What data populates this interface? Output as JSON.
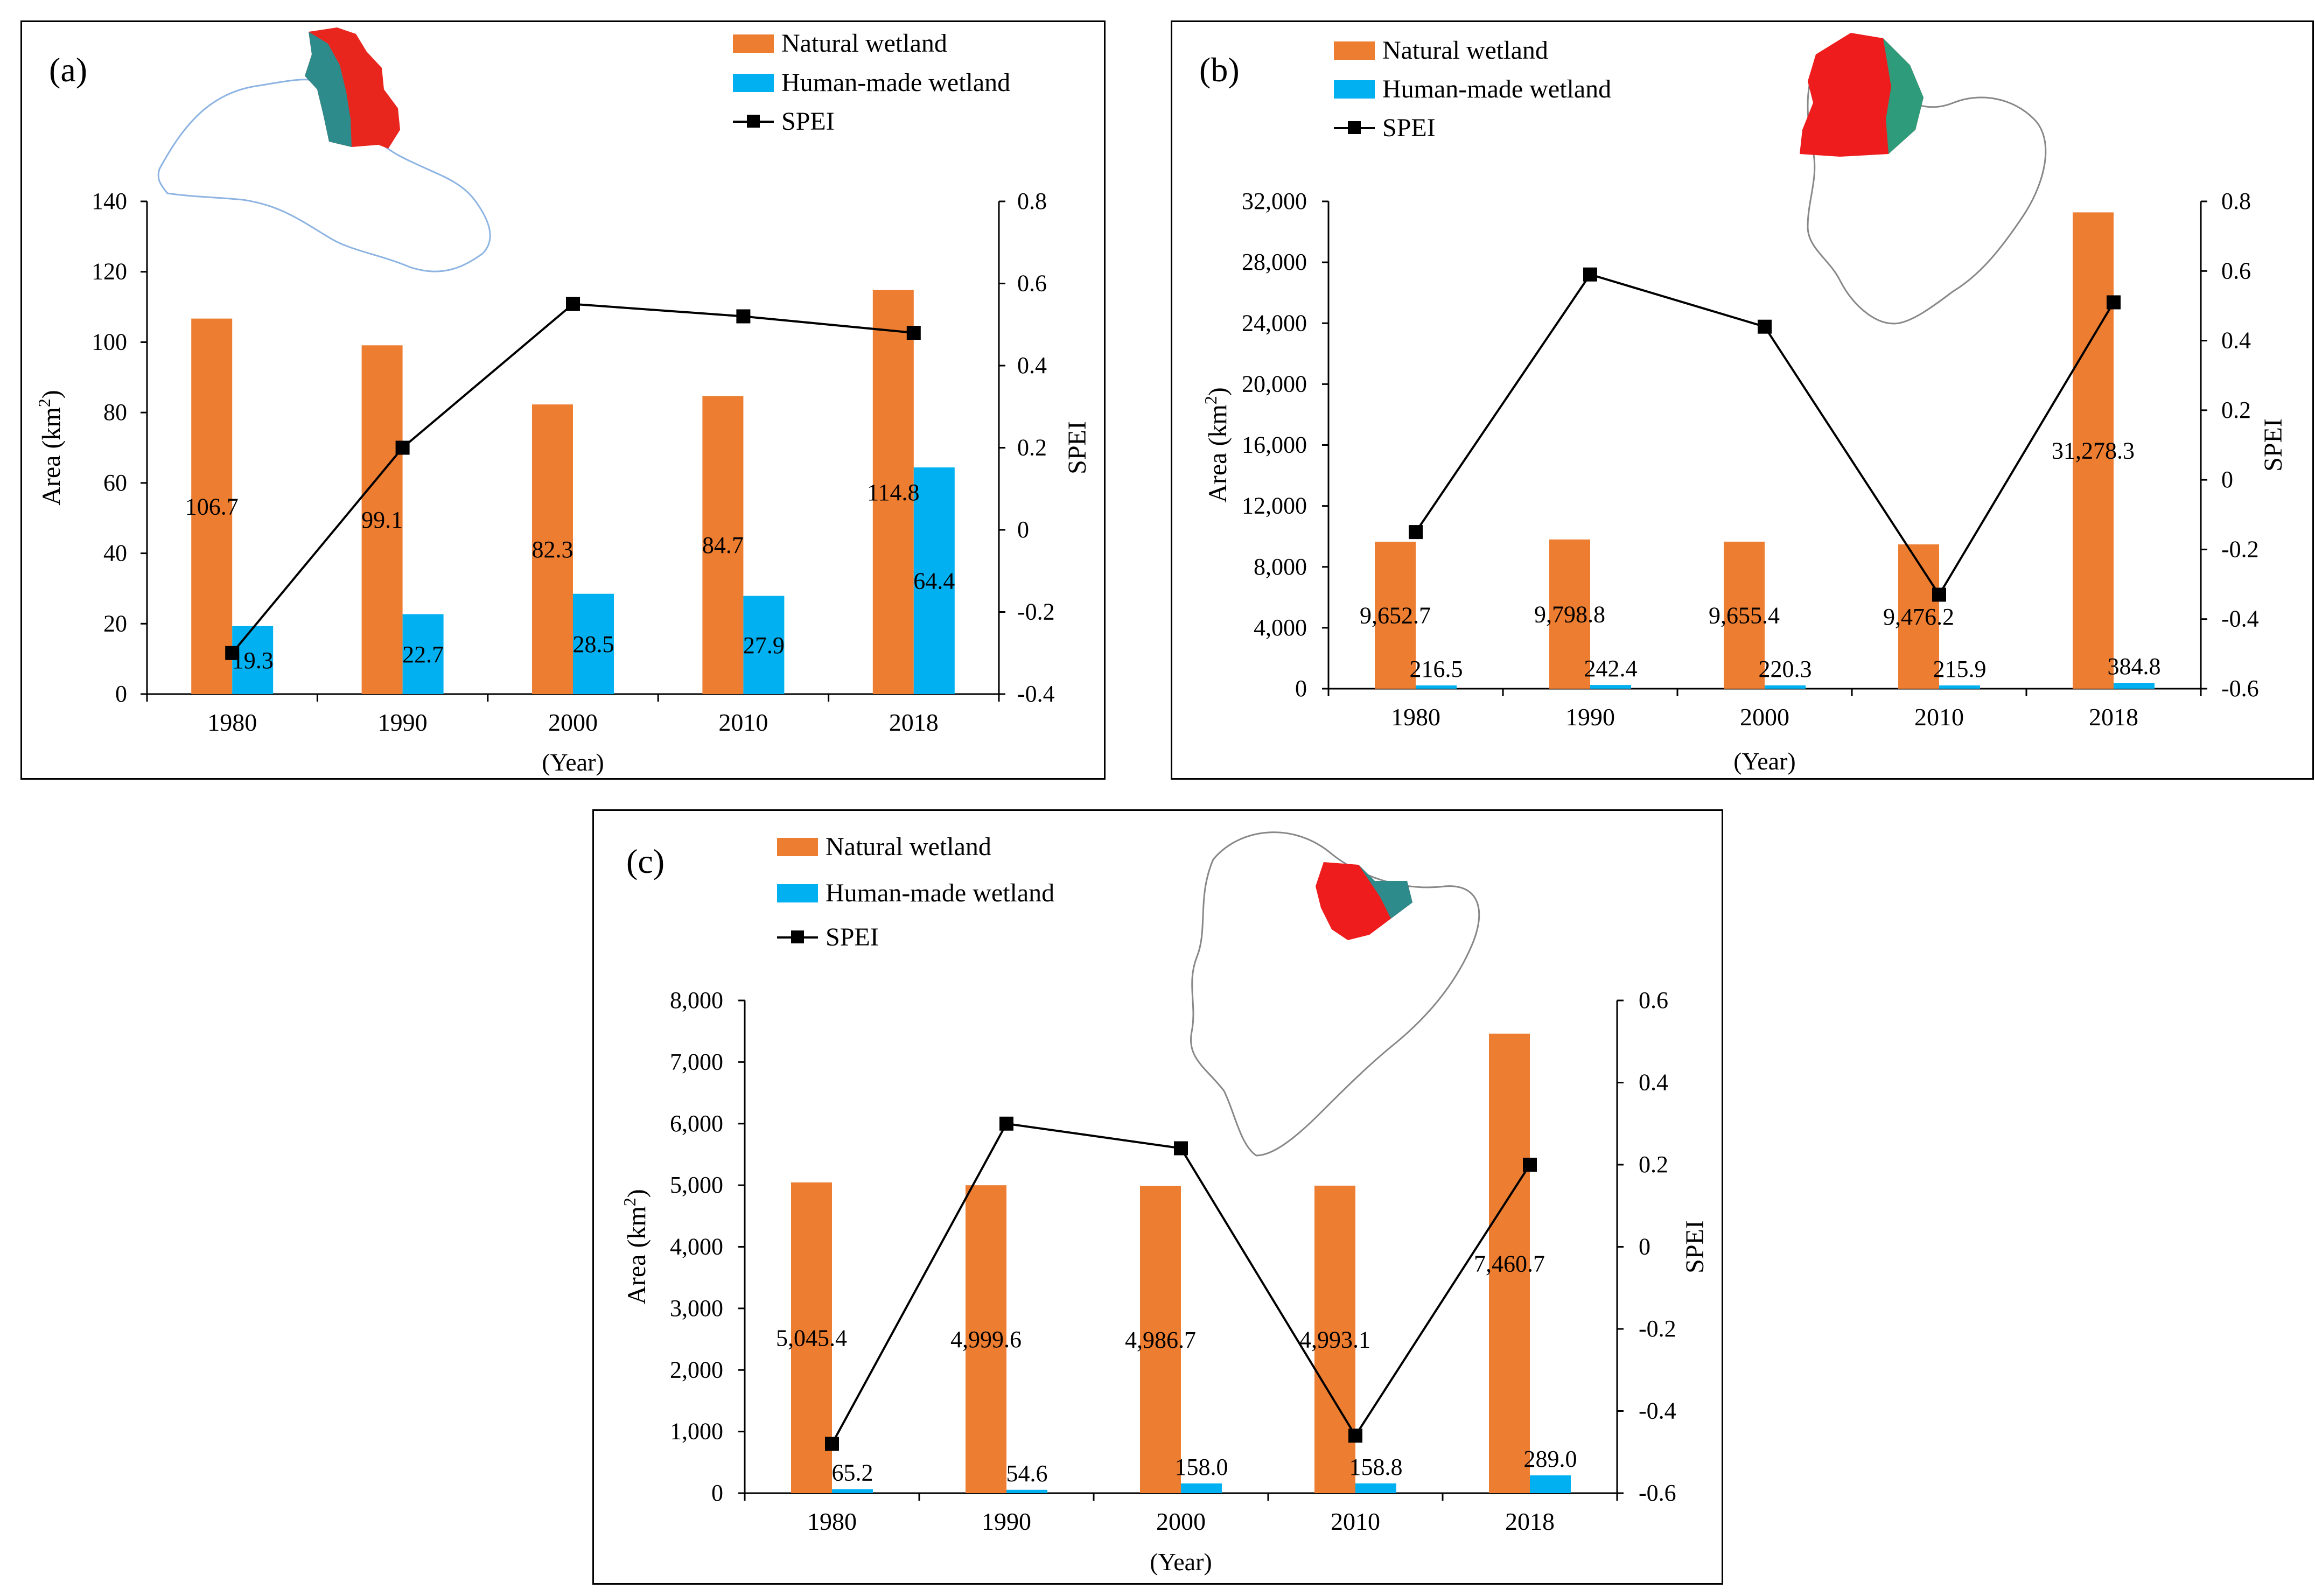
{
  "colors": {
    "natural": "#ED7D31",
    "human": "#00B0F0",
    "spei": "#000000"
  },
  "chart_data": [
    {
      "type": "bar",
      "panel_label": "(a)",
      "categories": [
        "1980",
        "1990",
        "2000",
        "2010",
        "2018"
      ],
      "xlabel": "(Year)",
      "ylabel_main": "Area (km",
      "ylabel_sup": "2",
      "ylabel_end": ")",
      "y2label": "SPEI",
      "ylim": [
        0,
        140
      ],
      "ystep": 20,
      "y2lim": [
        -0.4,
        0.8
      ],
      "y2step": 0.2,
      "y_ticks": [
        "0",
        "20",
        "40",
        "60",
        "80",
        "100",
        "120",
        "140"
      ],
      "y2_ticks": [
        "-0.4",
        "-0.2",
        "0",
        "0.2",
        "0.4",
        "0.6",
        "0.8"
      ],
      "legend": {
        "natural": "Natural wetland",
        "human": "Human-made wetland",
        "spei": "SPEI"
      },
      "series": [
        {
          "name": "Natural wetland",
          "values": [
            106.7,
            99.1,
            82.3,
            84.7,
            114.8
          ],
          "labels": [
            "106.7",
            "99.1",
            "82.3",
            "84.7",
            "114.8"
          ]
        },
        {
          "name": "Human-made wetland",
          "values": [
            19.3,
            22.7,
            28.5,
            27.9,
            64.4
          ],
          "labels": [
            "19.3",
            "22.7",
            "28.5",
            "27.9",
            "64.4"
          ]
        },
        {
          "name": "SPEI",
          "axis": "right",
          "values": [
            -0.3,
            0.2,
            0.55,
            0.52,
            0.48
          ]
        }
      ]
    },
    {
      "type": "bar",
      "panel_label": "(b)",
      "categories": [
        "1980",
        "1990",
        "2000",
        "2010",
        "2018"
      ],
      "xlabel": "(Year)",
      "ylabel_main": "Area (km",
      "ylabel_sup": "2",
      "ylabel_end": ")",
      "y2label": "SPEI",
      "ylim": [
        0,
        32000
      ],
      "ystep": 4000,
      "y2lim": [
        -0.6,
        0.8
      ],
      "y2step": 0.2,
      "y_ticks": [
        "0",
        "4,000",
        "8,000",
        "12,000",
        "16,000",
        "20,000",
        "24,000",
        "28,000",
        "32,000"
      ],
      "y2_ticks": [
        "-0.6",
        "-0.4",
        "-0.2",
        "0",
        "0.2",
        "0.4",
        "0.6",
        "0.8"
      ],
      "legend": {
        "natural": "Natural wetland",
        "human": "Human-made wetland",
        "spei": "SPEI"
      },
      "series": [
        {
          "name": "Natural wetland",
          "values": [
            9652.7,
            9798.8,
            9655.4,
            9476.2,
            31278.3
          ],
          "labels": [
            "9,652.7",
            "9,798.8",
            "9,655.4",
            "9,476.2",
            "31,278.3"
          ]
        },
        {
          "name": "Human-made wetland",
          "values": [
            216.5,
            242.4,
            220.3,
            215.9,
            384.8
          ],
          "labels": [
            "216.5",
            "242.4",
            "220.3",
            "215.9",
            "384.8"
          ]
        },
        {
          "name": "SPEI",
          "axis": "right",
          "values": [
            -0.15,
            0.59,
            0.44,
            -0.33,
            0.51
          ]
        }
      ]
    },
    {
      "type": "bar",
      "panel_label": "(c)",
      "categories": [
        "1980",
        "1990",
        "2000",
        "2010",
        "2018"
      ],
      "xlabel": "(Year)",
      "ylabel_main": "Area (km",
      "ylabel_sup": "2",
      "ylabel_end": ")",
      "y2label": "SPEI",
      "ylim": [
        0,
        8000
      ],
      "ystep": 1000,
      "y2lim": [
        -0.6,
        0.6
      ],
      "y2step": 0.2,
      "y_ticks": [
        "0",
        "1,000",
        "2,000",
        "3,000",
        "4,000",
        "5,000",
        "6,000",
        "7,000",
        "8,000"
      ],
      "y2_ticks": [
        "-0.6",
        "-0.4",
        "-0.2",
        "0",
        "0.2",
        "0.4",
        "0.6"
      ],
      "legend": {
        "natural": "Natural wetland",
        "human": "Human-made wetland",
        "spei": "SPEI"
      },
      "series": [
        {
          "name": "Natural wetland",
          "values": [
            5045.4,
            4999.6,
            4986.7,
            4993.1,
            7460.7
          ],
          "labels": [
            "5,045.4",
            "4,999.6",
            "4,986.7",
            "4,993.1",
            "7,460.7"
          ]
        },
        {
          "name": "Human-made wetland",
          "values": [
            65.2,
            54.6,
            158.0,
            158.8,
            289.0
          ],
          "labels": [
            "65.2",
            "54.6",
            "158.0",
            "158.8",
            "289.0"
          ]
        },
        {
          "name": "SPEI",
          "axis": "right",
          "values": [
            -0.48,
            0.3,
            0.24,
            -0.46,
            0.2
          ]
        }
      ]
    }
  ]
}
